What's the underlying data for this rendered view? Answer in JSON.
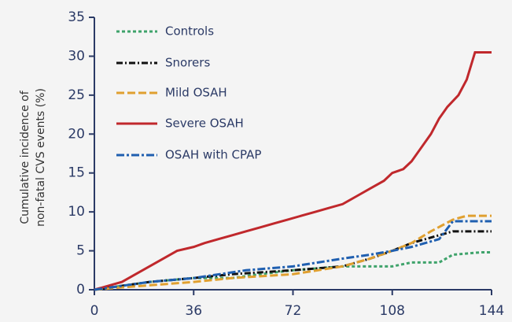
{
  "chart_data": {
    "type": "line",
    "ylabel": [
      "Cumulative incidence of",
      "non-fatal CVS events (%)"
    ],
    "xlim": [
      0,
      144
    ],
    "xticks": [
      0,
      36,
      72,
      108,
      144
    ],
    "ylim": [
      0,
      35
    ],
    "yticks": [
      0,
      5,
      10,
      15,
      20,
      25,
      30,
      35
    ],
    "legend": "upper-left",
    "series": [
      {
        "name": "Controls",
        "color": "#3fa36b",
        "dash": "4 3",
        "x": [
          0,
          10,
          20,
          36,
          50,
          60,
          72,
          90,
          108,
          115,
          125,
          130,
          140,
          144
        ],
        "values": [
          0,
          0.5,
          1,
          1.5,
          1.5,
          2,
          2.5,
          3,
          3,
          3.5,
          3.5,
          4.5,
          4.8,
          4.8
        ]
      },
      {
        "name": "Snorers",
        "color": "#111111",
        "dash": "8 3 2 3",
        "x": [
          0,
          10,
          20,
          36,
          50,
          72,
          90,
          100,
          108,
          115,
          125,
          130,
          144
        ],
        "values": [
          0,
          0.5,
          1,
          1.5,
          2,
          2.5,
          3,
          4,
          5,
          6,
          7,
          7.5,
          7.5
        ]
      },
      {
        "name": "Mild OSAH",
        "color": "#e0a030",
        "dash": "10 4",
        "x": [
          0,
          10,
          36,
          50,
          72,
          90,
          100,
          108,
          115,
          122,
          130,
          135,
          144
        ],
        "values": [
          0,
          0.3,
          1,
          1.5,
          2,
          3,
          4,
          5,
          6,
          7.5,
          9,
          9.5,
          9.5
        ]
      },
      {
        "name": "Severe OSAH",
        "color": "#c0282c",
        "dash": "",
        "x": [
          0,
          5,
          10,
          15,
          20,
          25,
          30,
          36,
          40,
          45,
          50,
          55,
          60,
          65,
          70,
          75,
          80,
          85,
          90,
          95,
          100,
          105,
          108,
          112,
          115,
          118,
          122,
          125,
          128,
          132,
          135,
          138,
          144
        ],
        "values": [
          0,
          0.5,
          1,
          2,
          3,
          4,
          5,
          5.5,
          6,
          6.5,
          7,
          7.5,
          8,
          8.5,
          9,
          9.5,
          10,
          10.5,
          11,
          12,
          13,
          14,
          15,
          15.5,
          16.5,
          18,
          20,
          22,
          23.5,
          25,
          27,
          30.5,
          30.5
        ]
      },
      {
        "name": "OSAH with CPAP",
        "color": "#1f5fb0",
        "dash": "10 3 3 3",
        "x": [
          0,
          10,
          20,
          36,
          55,
          72,
          90,
          100,
          108,
          115,
          125,
          130,
          144
        ],
        "values": [
          0,
          0.5,
          1,
          1.5,
          2.5,
          3,
          4,
          4.5,
          5,
          5.5,
          6.5,
          8.8,
          8.8
        ]
      }
    ]
  }
}
